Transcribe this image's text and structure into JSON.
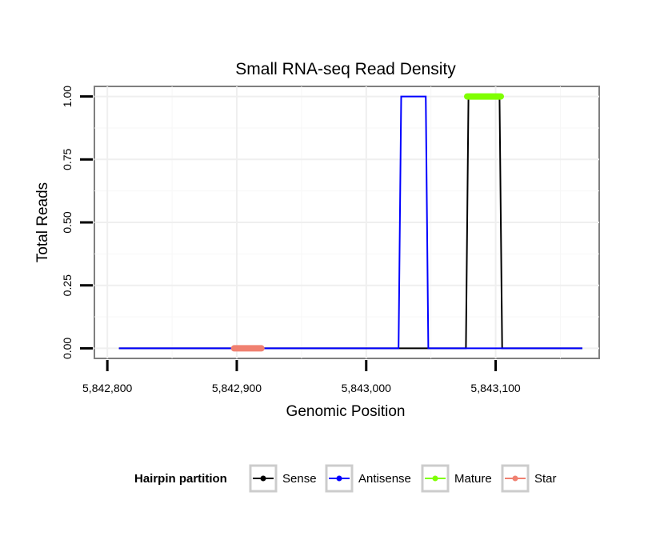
{
  "chart_data": {
    "type": "line",
    "title": "Small RNA-seq Read Density",
    "xlabel": "Genomic Position",
    "ylabel": "Total Reads",
    "xlim": [
      5842790,
      5843180
    ],
    "ylim": [
      -0.04,
      1.04
    ],
    "x_ticks": [
      5842800,
      5842900,
      5843000,
      5843100
    ],
    "x_tick_labels": [
      "5,842,800",
      "5,842,900",
      "5,843,000",
      "5,843,100"
    ],
    "y_ticks": [
      0,
      0.25,
      0.5,
      0.75,
      1.0
    ],
    "y_tick_labels": [
      "0.00",
      "0.25",
      "0.50",
      "0.75",
      "1.00"
    ],
    "grid": true,
    "legend": {
      "title": "Hairpin partition",
      "position": "bottom",
      "entries": [
        "Sense",
        "Antisense",
        "Mature",
        "Star"
      ]
    },
    "series": [
      {
        "name": "Sense",
        "color": "#000000",
        "x": [
          5842809,
          5843077,
          5843079,
          5843103,
          5843105,
          5843167
        ],
        "y": [
          0,
          0,
          1,
          1,
          0,
          0
        ]
      },
      {
        "name": "Antisense",
        "color": "#0000ff",
        "x": [
          5842809,
          5843025,
          5843027,
          5843046,
          5843048,
          5843167
        ],
        "y": [
          0,
          0,
          1,
          1,
          0,
          0
        ]
      },
      {
        "name": "Mature",
        "color": "#7fff00",
        "x": [
          5843078,
          5843104
        ],
        "y": [
          1,
          1
        ]
      },
      {
        "name": "Star",
        "color": "#f08070",
        "x": [
          5842898,
          5842919
        ],
        "y": [
          0,
          0
        ]
      }
    ]
  }
}
